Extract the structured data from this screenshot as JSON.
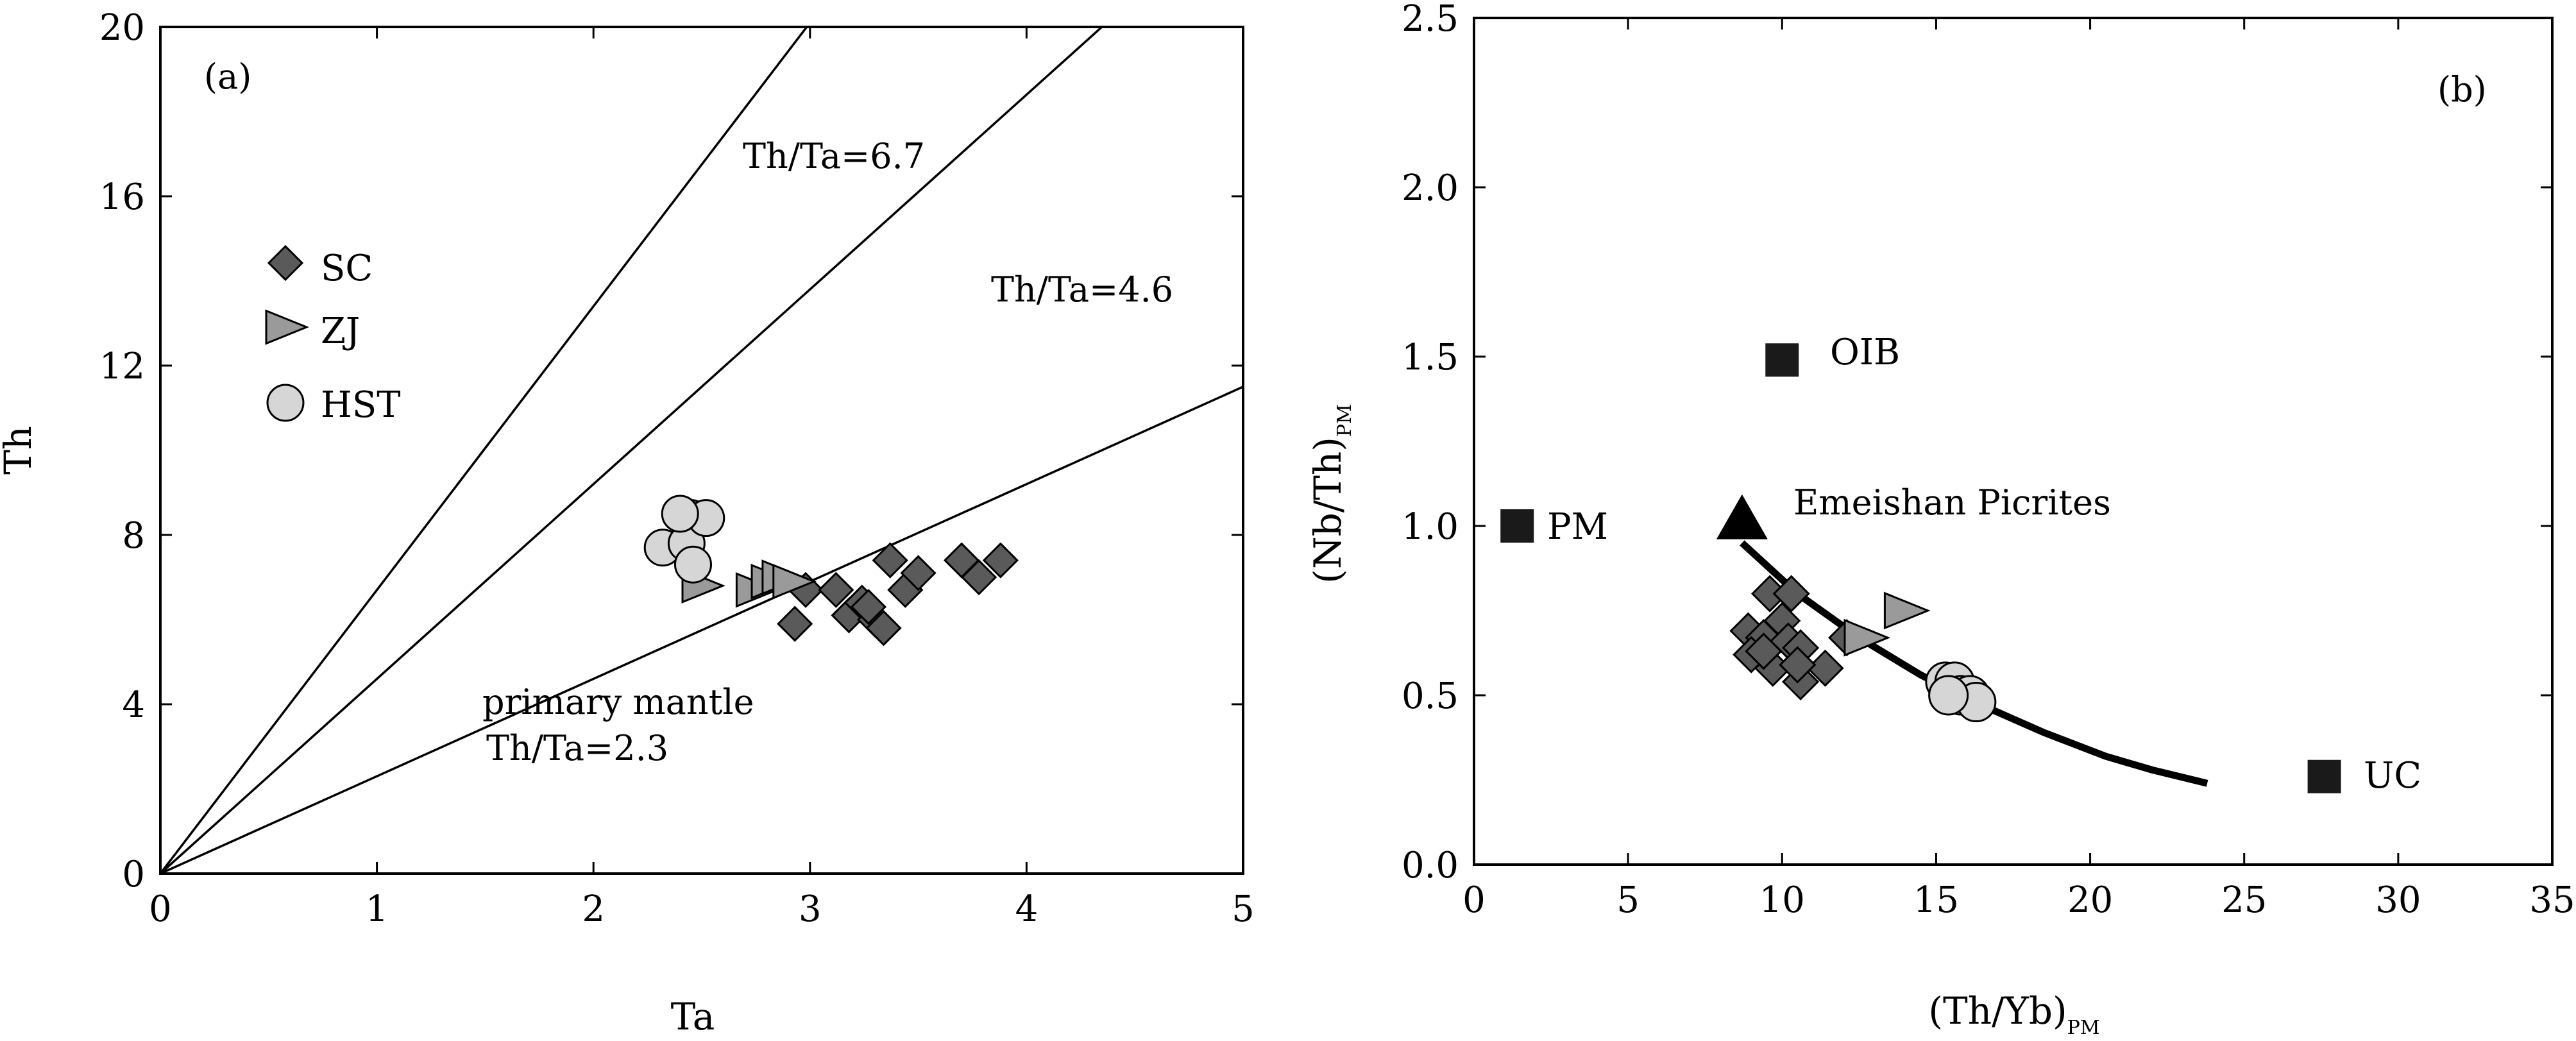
{
  "chart_data": [
    {
      "id": "a",
      "type": "scatter",
      "panel_label": "(a)",
      "xlabel": "Ta",
      "ylabel": "Th",
      "xlim": [
        0,
        5
      ],
      "ylim": [
        0,
        20
      ],
      "xticks": [
        "0",
        "1",
        "2",
        "3",
        "4",
        "5"
      ],
      "yticks": [
        "0",
        "4",
        "8",
        "12",
        "16",
        "20"
      ],
      "grid": false,
      "legend_position": "upper-left",
      "legend": [
        {
          "name": "SC",
          "symbol": "diamond"
        },
        {
          "name": "ZJ",
          "symbol": "triangle-right"
        },
        {
          "name": "HST",
          "symbol": "circle"
        }
      ],
      "reference_lines": [
        {
          "label": "Th/Ta=6.7",
          "slope": 6.7
        },
        {
          "label": "Th/Ta=4.6",
          "slope": 4.6
        },
        {
          "label": "Th/Ta=2.3",
          "label_line1": "primary mantle",
          "slope": 2.3
        }
      ],
      "series": [
        {
          "name": "SC",
          "symbol": "diamond",
          "color": "#5a5a5a",
          "x": [
            2.98,
            2.93,
            3.12,
            3.18,
            3.24,
            3.3,
            3.34,
            3.27,
            3.37,
            3.44,
            3.5,
            3.7,
            3.78,
            3.88
          ],
          "y": [
            6.7,
            5.9,
            6.7,
            6.1,
            6.4,
            6.0,
            5.8,
            6.3,
            7.4,
            6.7,
            7.1,
            7.4,
            7.0,
            7.4
          ]
        },
        {
          "name": "ZJ",
          "symbol": "triangle-right",
          "color": "#9a9a9a",
          "x": [
            2.5,
            2.75,
            2.82,
            2.87,
            2.92
          ],
          "y": [
            6.8,
            6.7,
            6.9,
            7.0,
            6.9
          ]
        },
        {
          "name": "HST",
          "symbol": "circle",
          "color": "#d6d6d6",
          "x": [
            2.32,
            2.45,
            2.43,
            2.52,
            2.4,
            2.46
          ],
          "y": [
            7.7,
            8.4,
            7.8,
            8.4,
            8.5,
            7.3
          ]
        }
      ]
    },
    {
      "id": "b",
      "type": "scatter",
      "panel_label": "(b)",
      "xlabel": "(Th/Yb)",
      "xlabel_sub": "PM",
      "ylabel": "(Nb/Th)",
      "ylabel_sub": "PM",
      "xlim": [
        0,
        35
      ],
      "ylim": [
        0,
        2.5
      ],
      "xticks": [
        "0",
        "5",
        "10",
        "15",
        "20",
        "25",
        "30",
        "35"
      ],
      "yticks": [
        "0.0",
        "0.5",
        "1.0",
        "1.5",
        "2.0",
        "2.5"
      ],
      "grid": false,
      "reference_points": [
        {
          "label": "PM",
          "x": 1.4,
          "y": 1.0
        },
        {
          "label": "OIB",
          "x": 10.0,
          "y": 1.49
        },
        {
          "label": "UC",
          "x": 27.6,
          "y": 0.26
        }
      ],
      "emeishan": {
        "label": "Emeishan Picrites",
        "x": 8.7,
        "y": 1.01
      },
      "trend_curve": {
        "x": [
          8.7,
          10.5,
          12.5,
          14.5,
          16.5,
          18.5,
          20.5,
          22.0,
          23.8
        ],
        "y": [
          0.95,
          0.8,
          0.67,
          0.56,
          0.47,
          0.39,
          0.32,
          0.28,
          0.24
        ]
      },
      "series": [
        {
          "name": "SC",
          "symbol": "diamond",
          "color": "#5a5a5a",
          "x": [
            9.6,
            10.3,
            8.9,
            9.4,
            10.0,
            10.2,
            10.6,
            9.0,
            9.7,
            10.6,
            11.4,
            9.4,
            10.5,
            12.1
          ],
          "y": [
            0.8,
            0.8,
            0.69,
            0.67,
            0.72,
            0.66,
            0.64,
            0.62,
            0.58,
            0.54,
            0.58,
            0.63,
            0.59,
            0.67
          ]
        },
        {
          "name": "ZJ",
          "symbol": "triangle-right",
          "color": "#9a9a9a",
          "x": [
            12.7,
            14.0
          ],
          "y": [
            0.67,
            0.75
          ]
        },
        {
          "name": "HST",
          "symbol": "circle",
          "color": "#d6d6d6",
          "x": [
            15.3,
            15.6,
            15.8,
            16.1,
            16.3,
            15.4
          ],
          "y": [
            0.54,
            0.54,
            0.5,
            0.5,
            0.48,
            0.5
          ]
        }
      ]
    }
  ]
}
